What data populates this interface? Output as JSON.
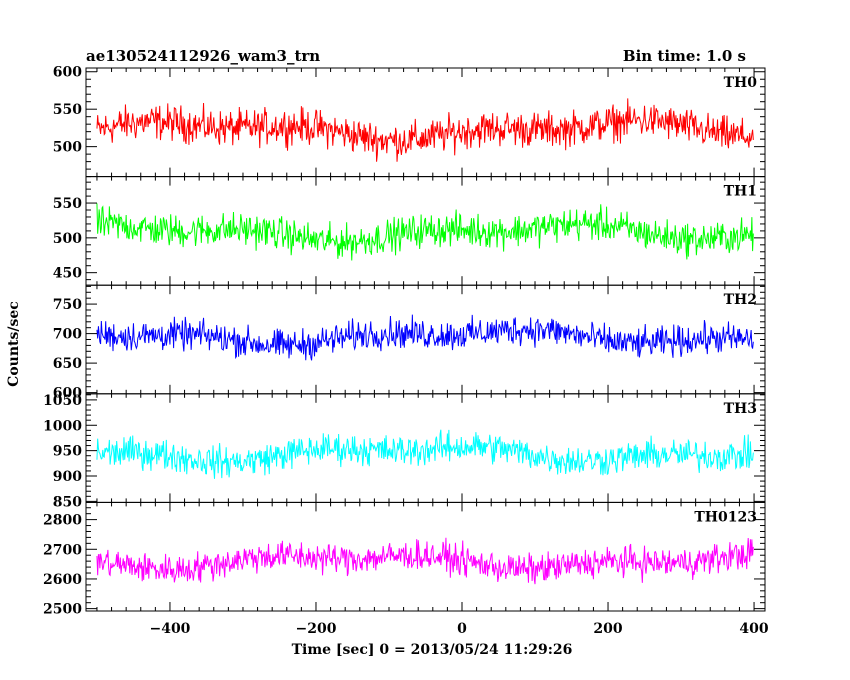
{
  "chart_data": {
    "type": "line",
    "title_left": "ae130524112926_wam3_trn",
    "title_right": "Bin time: 1.0 s",
    "xlabel": "Time [sec] 0 = 2013/05/24 11:29:26",
    "ylabel": "Counts/sec",
    "xlim": [
      -515,
      415
    ],
    "x_ticks": [
      -400,
      -200,
      0,
      200,
      400
    ],
    "x_tick_labels": [
      "−400",
      "−200",
      "0",
      "200",
      "400"
    ],
    "x_range": [
      -500,
      399
    ],
    "bin_time": 1.0,
    "panels": [
      {
        "name": "TH0",
        "color": "#ff0000",
        "ylim": [
          460,
          605
        ],
        "ticks": [
          500,
          550,
          600
        ],
        "tick_labels": [
          "500",
          "550",
          "600"
        ],
        "mean": 522,
        "amplitude": 35
      },
      {
        "name": "TH1",
        "color": "#00ff00",
        "ylim": [
          432,
          588
        ],
        "ticks": [
          450,
          500,
          550
        ],
        "tick_labels": [
          "450",
          "500",
          "550"
        ],
        "mean": 508,
        "amplitude": 35
      },
      {
        "name": "TH2",
        "color": "#0000ff",
        "ylim": [
          598,
          782
        ],
        "ticks": [
          600,
          650,
          700,
          750
        ],
        "tick_labels": [
          "600",
          "650",
          "700",
          "750"
        ],
        "mean": 695,
        "amplitude": 38
      },
      {
        "name": "TH3",
        "color": "#00ffff",
        "ylim": [
          848,
          1062
        ],
        "ticks": [
          850,
          900,
          950,
          1000,
          1050
        ],
        "tick_labels": [
          "850",
          "900",
          "950",
          "1000",
          "1050"
        ],
        "mean": 945,
        "amplitude": 45
      },
      {
        "name": "TH0123",
        "color": "#ff00ff",
        "ylim": [
          2492,
          2858
        ],
        "ticks": [
          2500,
          2600,
          2700,
          2800
        ],
        "tick_labels": [
          "2500",
          "2600",
          "2700",
          "2800"
        ],
        "mean": 2660,
        "amplitude": 75
      }
    ]
  }
}
